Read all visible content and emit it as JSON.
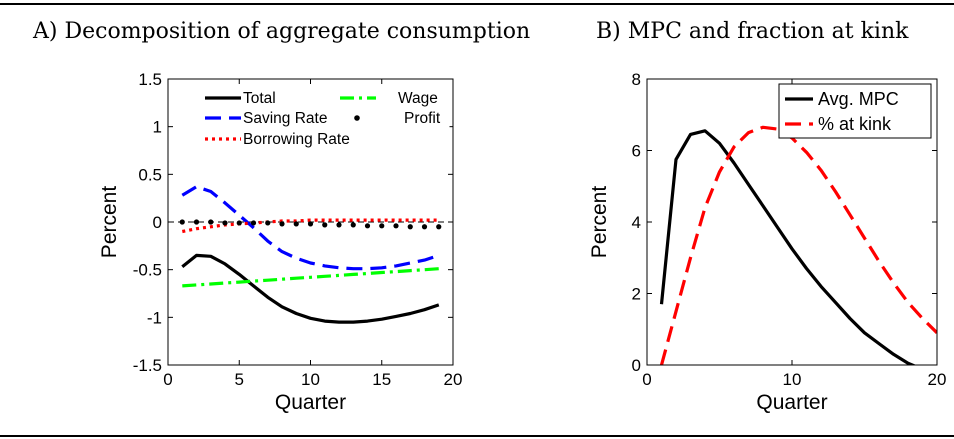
{
  "chart_data": [
    {
      "panel_title": "A) Decomposition of aggregate consumption",
      "type": "line",
      "xlabel": "Quarter",
      "ylabel": "Percent",
      "xlim": [
        0,
        20
      ],
      "ylim": [
        -1.5,
        1.5
      ],
      "xticks": [
        "0",
        "5",
        "10",
        "15",
        "20"
      ],
      "yticks": [
        "-1.5",
        "-1",
        "-0.5",
        "0",
        "0.5",
        "1",
        "1.5"
      ],
      "legend_position": "top-right",
      "reference_line_y": 0,
      "series": [
        {
          "name": "Total",
          "color": "#000000",
          "style": "solid",
          "x": [
            1,
            2,
            3,
            4,
            5,
            6,
            7,
            8,
            9,
            10,
            11,
            12,
            13,
            14,
            15,
            16,
            17,
            18,
            19
          ],
          "y": [
            -0.47,
            -0.35,
            -0.36,
            -0.44,
            -0.55,
            -0.67,
            -0.79,
            -0.89,
            -0.96,
            -1.01,
            -1.04,
            -1.05,
            -1.05,
            -1.04,
            -1.02,
            -0.99,
            -0.96,
            -0.92,
            -0.87
          ]
        },
        {
          "name": "Saving Rate",
          "color": "#0000ff",
          "style": "dashed",
          "x": [
            1,
            2,
            3,
            4,
            5,
            6,
            7,
            8,
            9,
            10,
            11,
            12,
            13,
            14,
            15,
            16,
            17,
            18,
            19
          ],
          "y": [
            0.28,
            0.37,
            0.32,
            0.2,
            0.07,
            -0.06,
            -0.2,
            -0.31,
            -0.38,
            -0.43,
            -0.46,
            -0.48,
            -0.49,
            -0.49,
            -0.48,
            -0.46,
            -0.43,
            -0.4,
            -0.35
          ]
        },
        {
          "name": "Borrowing Rate",
          "color": "#ff0000",
          "style": "dotted",
          "x": [
            1,
            2,
            3,
            4,
            5,
            6,
            7,
            8,
            9,
            10,
            11,
            12,
            13,
            14,
            15,
            16,
            17,
            18,
            19
          ],
          "y": [
            -0.1,
            -0.07,
            -0.05,
            -0.03,
            -0.02,
            -0.01,
            0.0,
            0.01,
            0.01,
            0.02,
            0.02,
            0.02,
            0.02,
            0.02,
            0.02,
            0.02,
            0.02,
            0.02,
            0.02
          ]
        },
        {
          "name": "Wage",
          "color": "#00ff00",
          "style": "dashdot",
          "x": [
            1,
            2,
            3,
            4,
            5,
            6,
            7,
            8,
            9,
            10,
            11,
            12,
            13,
            14,
            15,
            16,
            17,
            18,
            19
          ],
          "y": [
            -0.67,
            -0.66,
            -0.65,
            -0.64,
            -0.63,
            -0.62,
            -0.61,
            -0.6,
            -0.59,
            -0.58,
            -0.57,
            -0.56,
            -0.55,
            -0.54,
            -0.53,
            -0.52,
            -0.51,
            -0.5,
            -0.49
          ]
        },
        {
          "name": "Profit",
          "color": "#000000",
          "style": "dots",
          "x": [
            1,
            2,
            3,
            4,
            5,
            6,
            7,
            8,
            9,
            10,
            11,
            12,
            13,
            14,
            15,
            16,
            17,
            18,
            19
          ],
          "y": [
            0.0,
            0.0,
            0.0,
            -0.01,
            -0.01,
            -0.01,
            -0.01,
            -0.02,
            -0.02,
            -0.02,
            -0.03,
            -0.03,
            -0.03,
            -0.04,
            -0.04,
            -0.04,
            -0.05,
            -0.05,
            -0.05
          ]
        }
      ]
    },
    {
      "panel_title": "B) MPC and fraction at kink",
      "type": "line",
      "xlabel": "Quarter",
      "ylabel": "Percent",
      "xlim": [
        0,
        20
      ],
      "ylim": [
        0,
        8
      ],
      "xticks": [
        "0",
        "10",
        "20"
      ],
      "yticks": [
        "0",
        "2",
        "4",
        "6",
        "8"
      ],
      "legend_position": "top-right",
      "reference_line_y": 0,
      "series": [
        {
          "name": "Avg. MPC",
          "color": "#000000",
          "style": "solid",
          "x": [
            1,
            2,
            3,
            4,
            5,
            6,
            7,
            8,
            9,
            10,
            11,
            12,
            13,
            14,
            15,
            16,
            17,
            18,
            19
          ],
          "y": [
            1.7,
            5.75,
            6.45,
            6.55,
            6.2,
            5.65,
            5.05,
            4.45,
            3.85,
            3.25,
            2.7,
            2.2,
            1.75,
            1.3,
            0.9,
            0.6,
            0.3,
            0.05,
            -0.12
          ]
        },
        {
          "name": "% at kink",
          "color": "#ff0000",
          "style": "dashed",
          "x": [
            1,
            2,
            3,
            4,
            5,
            6,
            7,
            8,
            9,
            10,
            11,
            12,
            13,
            14,
            15,
            16,
            17,
            18,
            19,
            20
          ],
          "y": [
            0.0,
            1.5,
            3.0,
            4.4,
            5.4,
            6.1,
            6.5,
            6.65,
            6.6,
            6.35,
            5.95,
            5.45,
            4.85,
            4.2,
            3.55,
            2.9,
            2.3,
            1.75,
            1.3,
            0.9
          ]
        }
      ]
    }
  ]
}
